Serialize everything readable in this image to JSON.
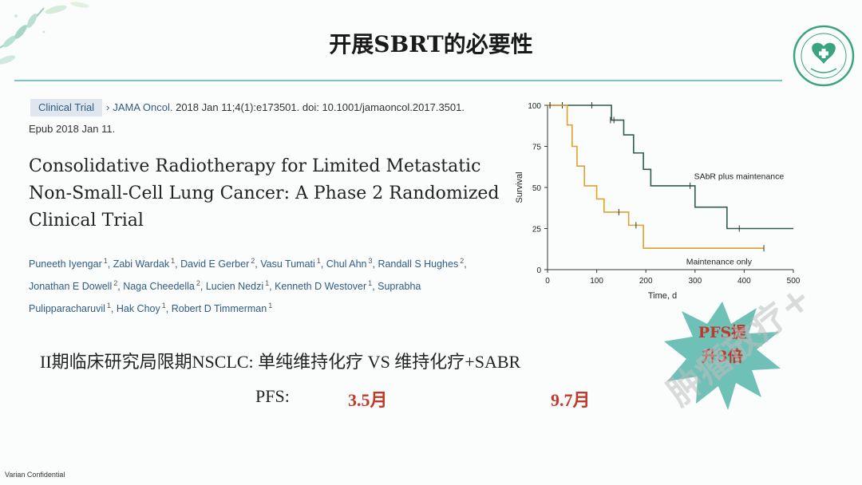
{
  "slide": {
    "title": "开展SBRT的必要性",
    "footer": "Varian Confidential",
    "watermark": "肿瘤放疗+"
  },
  "paper": {
    "tag": "Clinical Trial",
    "journal": "JAMA Oncol.",
    "citation_rest": " 2018 Jan 11;4(1):e173501. doi: 10.1001/jamaoncol.2017.3501.",
    "epub": "Epub 2018 Jan 11.",
    "title_lines": [
      "Consolidative Radiotherapy for Limited Metastatic",
      "Non-Small-Cell Lung Cancer: A Phase 2 Randomized",
      "Clinical Trial"
    ],
    "authors": [
      {
        "name": "Puneeth Iyengar",
        "sup": "1"
      },
      {
        "name": "Zabi Wardak",
        "sup": "1"
      },
      {
        "name": "David E Gerber",
        "sup": "2"
      },
      {
        "name": "Vasu Tumati",
        "sup": "1"
      },
      {
        "name": "Chul Ahn",
        "sup": "3"
      },
      {
        "name": "Randall S Hughes",
        "sup": "2"
      },
      {
        "name": "Jonathan E Dowell",
        "sup": "2"
      },
      {
        "name": "Naga Cheedella",
        "sup": "2"
      },
      {
        "name": "Lucien Nedzi",
        "sup": "1"
      },
      {
        "name": "Kenneth D Westover",
        "sup": "1"
      },
      {
        "name": "Suprabha Pulipparacharuvil",
        "sup": "1"
      },
      {
        "name": "Hak Choy",
        "sup": "1"
      },
      {
        "name": "Robert D Timmerman",
        "sup": "1"
      }
    ]
  },
  "study": {
    "line": "II期临床研究局限期NSCLC:  单纯维持化疗    VS    维持化疗+SABR",
    "pfs_label": "PFS:",
    "pfs_maintenance": "3.5月",
    "pfs_sabr": "9.7月"
  },
  "callout": {
    "lines": [
      "PFS提",
      "升3倍"
    ]
  },
  "colors": {
    "accent_rule": "#7cc4be",
    "highlight": "#c0392b",
    "series_sabr": "#2f5d50",
    "series_maint": "#e0a030",
    "burst": "#6fc0b7"
  },
  "chart_data": {
    "type": "line",
    "step": true,
    "xlabel": "Time, d",
    "ylabel": "Survival",
    "xlim": [
      0,
      500
    ],
    "ylim": [
      0,
      100
    ],
    "xticks": [
      0,
      100,
      200,
      300,
      400,
      500
    ],
    "yticks": [
      0,
      25,
      50,
      75,
      100
    ],
    "grid": false,
    "series": [
      {
        "name": "SAbR plus maintenance",
        "color": "#2f5d50",
        "x": [
          0,
          115,
          130,
          155,
          175,
          195,
          210,
          300,
          365,
          500
        ],
        "y": [
          100,
          100,
          91,
          82,
          71,
          61,
          51,
          38,
          25,
          25
        ],
        "censored": [
          [
            5,
            100
          ],
          [
            30,
            100
          ],
          [
            90,
            100
          ],
          [
            128,
            91
          ],
          [
            135,
            91
          ],
          [
            290,
            51
          ],
          [
            390,
            25
          ]
        ]
      },
      {
        "name": "Maintenance only",
        "color": "#e0a030",
        "x": [
          0,
          30,
          40,
          50,
          60,
          75,
          100,
          115,
          135,
          165,
          180,
          195,
          440
        ],
        "y": [
          100,
          100,
          88,
          75,
          63,
          51,
          43,
          35,
          35,
          27,
          27,
          13,
          13
        ],
        "censored": [
          [
            5,
            100
          ],
          [
            145,
            35
          ],
          [
            180,
            27
          ],
          [
            440,
            13
          ]
        ]
      }
    ]
  }
}
